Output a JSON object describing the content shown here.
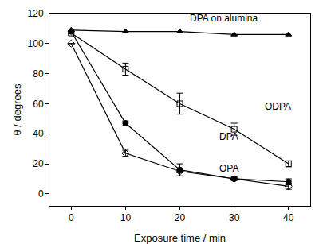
{
  "chart_data": {
    "type": "line",
    "x_label": "Exposure time / min",
    "y_label": "θ / degrees",
    "x": [
      0,
      10,
      20,
      30,
      40
    ],
    "xlim": [
      -4,
      44
    ],
    "xticks": [
      0,
      10,
      20,
      30,
      40
    ],
    "ylim": [
      -8,
      120
    ],
    "yticks": [
      0,
      20,
      40,
      60,
      80,
      100,
      120
    ],
    "grid": false,
    "series": [
      {
        "name": "DPA on alumina",
        "color": "#000000",
        "marker": "triangle-up",
        "values": [
          109,
          108,
          108,
          106,
          106
        ]
      },
      {
        "name": "ODPA",
        "color": "#000000",
        "marker": "square-open",
        "values": [
          107,
          83,
          60,
          43,
          20
        ],
        "errors": [
          0,
          4,
          7,
          4,
          2
        ]
      },
      {
        "name": "DPA",
        "color": "#000000",
        "marker": "circle",
        "values": [
          108,
          47,
          16,
          10,
          8
        ],
        "errors": [
          0,
          1.5,
          4,
          1,
          2
        ]
      },
      {
        "name": "OPA",
        "color": "#000000",
        "marker": "diamond-open",
        "values": [
          100,
          27,
          15,
          10,
          5
        ],
        "errors": [
          0,
          2,
          1,
          1,
          2
        ]
      }
    ]
  }
}
